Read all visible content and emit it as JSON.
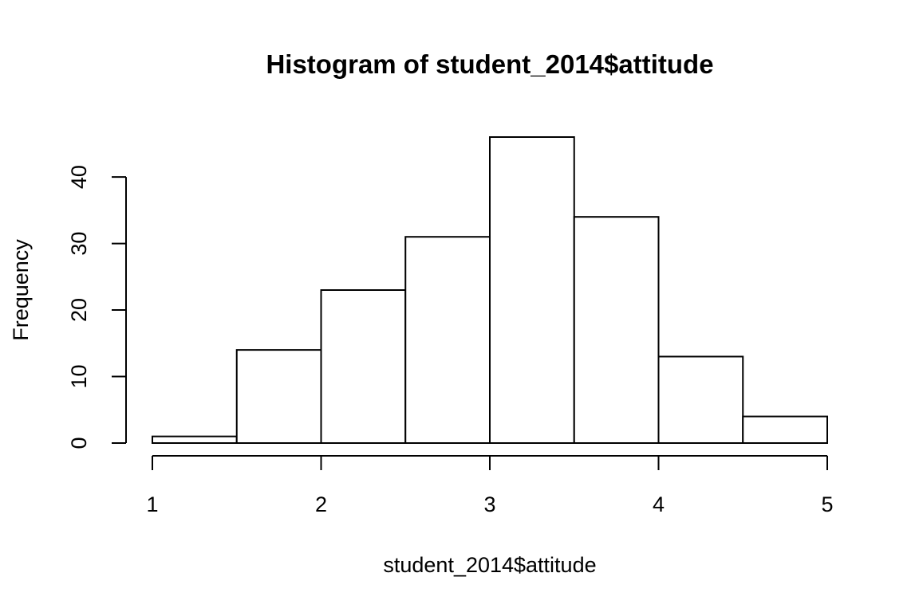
{
  "chart_data": {
    "type": "bar",
    "title": "Histogram of student_2014$attitude",
    "xlabel": "student_2014$attitude",
    "ylabel": "Frequency",
    "bins": [
      {
        "x0": 1.0,
        "x1": 1.5,
        "count": 1
      },
      {
        "x0": 1.5,
        "x1": 2.0,
        "count": 14
      },
      {
        "x0": 2.0,
        "x1": 2.5,
        "count": 23
      },
      {
        "x0": 2.5,
        "x1": 3.0,
        "count": 31
      },
      {
        "x0": 3.0,
        "x1": 3.5,
        "count": 46
      },
      {
        "x0": 3.5,
        "x1": 4.0,
        "count": 34
      },
      {
        "x0": 4.0,
        "x1": 4.5,
        "count": 13
      },
      {
        "x0": 4.5,
        "x1": 5.0,
        "count": 4
      }
    ],
    "xlim": [
      1,
      5
    ],
    "ylim": [
      0,
      46
    ],
    "xticks": [
      1,
      2,
      3,
      4,
      5
    ],
    "yticks": [
      0,
      10,
      20,
      30,
      40
    ],
    "grid": false,
    "legend": "none"
  }
}
